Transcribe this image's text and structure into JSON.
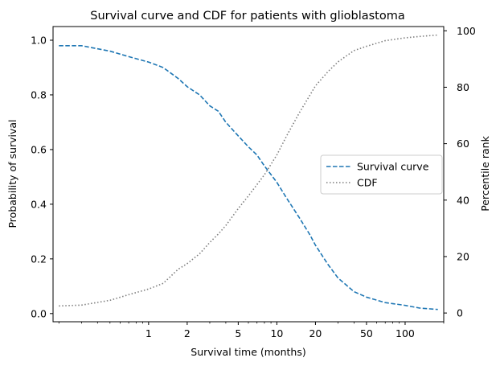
{
  "chart_data": {
    "type": "line",
    "title": "Survival curve and CDF for patients with glioblastoma",
    "xlabel": "Survival time (months)",
    "ylabel": "Probability of survival",
    "y2label": "Percentile rank",
    "xscale": "log",
    "xlim": [
      0.18,
      200
    ],
    "ylim": [
      -0.03,
      1.05
    ],
    "y2lim": [
      -3.1,
      101.5
    ],
    "xticks": [
      1,
      2,
      5,
      10,
      20,
      50,
      100
    ],
    "xtick_labels": [
      "1",
      "2",
      "5",
      "10",
      "20",
      "50",
      "100"
    ],
    "yticks": [
      0.0,
      0.2,
      0.4,
      0.6,
      0.8,
      1.0
    ],
    "ytick_labels": [
      "0.0",
      "0.2",
      "0.4",
      "0.6",
      "0.8",
      "1.0"
    ],
    "y2ticks": [
      0,
      20,
      40,
      60,
      80,
      100
    ],
    "y2tick_labels": [
      "0",
      "20",
      "40",
      "60",
      "80",
      "100"
    ],
    "grid": false,
    "legend_position": "center-right",
    "series": [
      {
        "name": "Survival curve",
        "axis": "left",
        "style": "dashed",
        "color": "#1f77b4",
        "x": [
          0.2,
          0.3,
          0.5,
          0.7,
          1.0,
          1.3,
          1.7,
          2.0,
          2.5,
          3.0,
          3.5,
          4.0,
          5.0,
          6.0,
          7.0,
          8.0,
          10.0,
          12.0,
          15.0,
          18.0,
          20.0,
          25.0,
          30.0,
          40.0,
          50.0,
          70.0,
          100.0,
          130.0,
          180.0
        ],
        "y": [
          0.98,
          0.98,
          0.96,
          0.94,
          0.92,
          0.9,
          0.86,
          0.83,
          0.8,
          0.76,
          0.74,
          0.7,
          0.65,
          0.61,
          0.58,
          0.54,
          0.48,
          0.42,
          0.35,
          0.29,
          0.25,
          0.18,
          0.13,
          0.08,
          0.06,
          0.04,
          0.03,
          0.02,
          0.015
        ]
      },
      {
        "name": "CDF",
        "axis": "right",
        "style": "dotted",
        "color": "#7f7f7f",
        "x": [
          0.2,
          0.3,
          0.5,
          0.7,
          1.0,
          1.3,
          1.7,
          2.0,
          2.5,
          3.0,
          3.5,
          4.0,
          5.0,
          6.0,
          7.0,
          8.0,
          10.0,
          12.0,
          15.0,
          18.0,
          20.0,
          25.0,
          30.0,
          40.0,
          50.0,
          70.0,
          100.0,
          130.0,
          180.0
        ],
        "y": [
          2.5,
          2.8,
          4.5,
          6.5,
          8.5,
          10.5,
          15.5,
          17.5,
          21.0,
          25.0,
          28.0,
          31.0,
          37.0,
          41.5,
          45.5,
          49.0,
          56.0,
          63.0,
          71.0,
          77.0,
          80.5,
          85.5,
          89.0,
          93.0,
          94.5,
          96.5,
          97.5,
          98.0,
          98.5
        ]
      }
    ]
  }
}
